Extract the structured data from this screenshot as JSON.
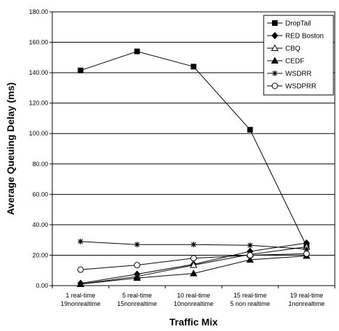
{
  "chart_data": {
    "type": "line",
    "xlabel": "Traffic Mix",
    "ylabel": "Average Queuing Delay (ms)",
    "ylim": [
      0,
      180
    ],
    "yticks": [
      "0.00",
      "20.00",
      "40.00",
      "60.00",
      "80.00",
      "100.00",
      "120.00",
      "140.00",
      "160.00",
      "180.00"
    ],
    "categories": [
      [
        "1 real-time",
        "19nonrealtime"
      ],
      [
        "5 real-time",
        "15nonrealtime"
      ],
      [
        "10 real-time",
        "10nonrealtime"
      ],
      [
        "15 real-time",
        "5 non realtime"
      ],
      [
        "19 real-time",
        "1nonrealtime"
      ]
    ],
    "grid": "horizontal",
    "legend_position": "top-right",
    "series": [
      {
        "name": "DropTail",
        "marker": "square-filled",
        "values": [
          141.5,
          154.0,
          144.0,
          102.5,
          26.0
        ]
      },
      {
        "name": "RED Boston",
        "marker": "diamond-filled",
        "values": [
          1.5,
          7.5,
          14.0,
          22.5,
          28.0
        ]
      },
      {
        "name": "CBQ",
        "marker": "triangle-open",
        "values": [
          1.0,
          6.0,
          13.5,
          20.5,
          25.5
        ]
      },
      {
        "name": "CEDF",
        "marker": "triangle-filled",
        "values": [
          1.0,
          5.0,
          8.0,
          17.0,
          19.5
        ]
      },
      {
        "name": "WSDRR",
        "marker": "asterisk",
        "values": [
          29.0,
          27.0,
          27.0,
          26.5,
          24.0
        ]
      },
      {
        "name": "WSDPRR",
        "marker": "circle-open",
        "values": [
          10.5,
          13.5,
          18.0,
          20.0,
          21.0
        ]
      }
    ]
  }
}
